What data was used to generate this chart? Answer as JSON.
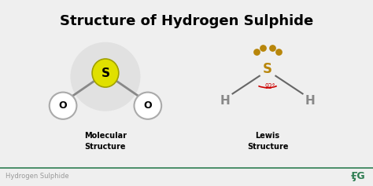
{
  "title": "Structure of Hydrogen Sulphide",
  "title_fontsize": 13,
  "title_fontweight": "bold",
  "bg_color": "#efefef",
  "footer_text": "Hydrogen Sulphide",
  "footer_color": "#999999",
  "footer_fontsize": 6,
  "mol_label": "Molecular\nStructure",
  "lewis_label": "Lewis\nStructure",
  "label_fontsize": 7,
  "label_fontweight": "bold",
  "sulfur_color_mol": "#e0e000",
  "sulfur_edge_mol": "#a0a000",
  "sulfur_color_lewis": "#b8860b",
  "oxygen_color": "#ffffff",
  "oxygen_edge": "#aaaaaa",
  "bond_color": "#888888",
  "angle_color": "#cc0000",
  "lone_pair_color": "#b8860b",
  "H_color": "#888888",
  "line_color": "#2e7d52",
  "gg_color": "#2e7d52",
  "shadow_color": "#cccccc"
}
